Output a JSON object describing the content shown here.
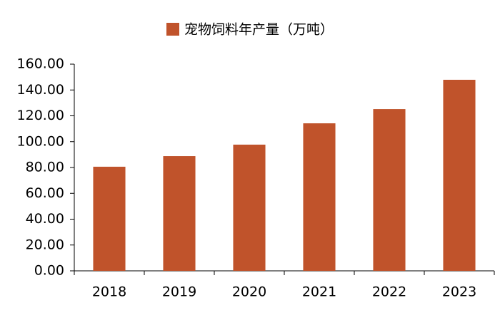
{
  "chart_data": {
    "type": "bar",
    "categories": [
      "2018",
      "2019",
      "2020",
      "2021",
      "2022",
      "2023"
    ],
    "series": [
      {
        "name": "宠物饲料年产量（万吨）",
        "color": "#c0532b",
        "values": [
          80.6,
          88.8,
          97.7,
          114.2,
          125.2,
          147.9
        ]
      }
    ],
    "ylim": [
      0,
      160
    ],
    "yticks": [
      {
        "value": 0,
        "label": "0.00"
      },
      {
        "value": 20,
        "label": "20.00"
      },
      {
        "value": 40,
        "label": "40.00"
      },
      {
        "value": 60,
        "label": "60.00"
      },
      {
        "value": 80,
        "label": "80.00"
      },
      {
        "value": 100,
        "label": "100.00"
      },
      {
        "value": 120,
        "label": "120.00"
      },
      {
        "value": 140,
        "label": "140.00"
      },
      {
        "value": 160,
        "label": "160.00"
      }
    ],
    "grid": false,
    "legend": "top"
  }
}
